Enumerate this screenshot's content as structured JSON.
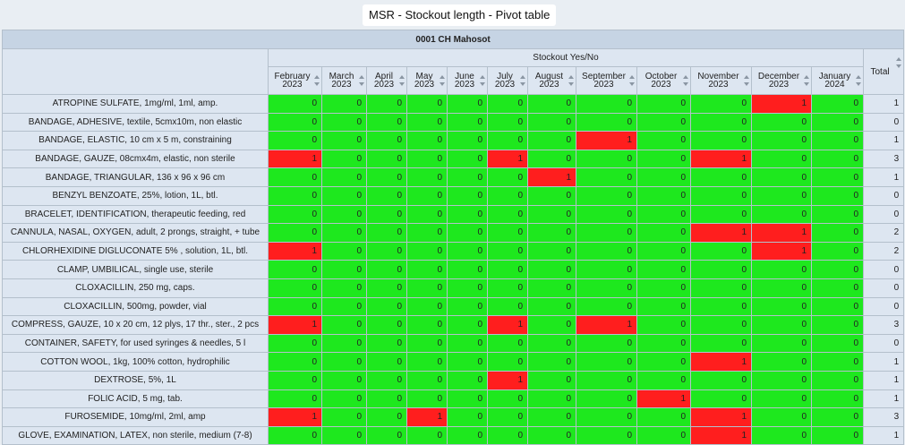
{
  "window": {
    "title": "MSR - Stockout length - Pivot table"
  },
  "org_unit": "0001 CH Mahosot",
  "dimension_label": "Stockout Yes/No",
  "periods": [
    {
      "month": "February",
      "year": "2023"
    },
    {
      "month": "March",
      "year": "2023"
    },
    {
      "month": "April",
      "year": "2023"
    },
    {
      "month": "May",
      "year": "2023"
    },
    {
      "month": "June",
      "year": "2023"
    },
    {
      "month": "July",
      "year": "2023"
    },
    {
      "month": "August",
      "year": "2023"
    },
    {
      "month": "September",
      "year": "2023"
    },
    {
      "month": "October",
      "year": "2023"
    },
    {
      "month": "November",
      "year": "2023"
    },
    {
      "month": "December",
      "year": "2023"
    },
    {
      "month": "January",
      "year": "2024"
    }
  ],
  "total_label": "Total",
  "colors": {
    "stockout": "#ff1e1e",
    "in_stock": "#1ee81e",
    "header": "#dde6f1",
    "org_header": "#c6d4e4"
  },
  "rows": [
    {
      "item": "ATROPINE SULFATE, 1mg/ml, 1ml, amp.",
      "values": [
        "0",
        "0",
        "0",
        "0",
        "0",
        "0",
        "0",
        "0",
        "0",
        "0",
        "1",
        "0"
      ],
      "total": "1"
    },
    {
      "item": "BANDAGE, ADHESIVE, textile, 5cmx10m, non elastic",
      "values": [
        "0",
        "0",
        "0",
        "0",
        "0",
        "0",
        "0",
        "0",
        "0",
        "0",
        "0",
        "0"
      ],
      "total": "0"
    },
    {
      "item": "BANDAGE, ELASTIC, 10 cm x 5 m, constraining",
      "values": [
        "0",
        "0",
        "0",
        "0",
        "0",
        "0",
        "0",
        "1",
        "0",
        "0",
        "0",
        "0"
      ],
      "total": "1"
    },
    {
      "item": "BANDAGE, GAUZE, 08cmx4m, elastic, non sterile",
      "values": [
        "1",
        "0",
        "0",
        "0",
        "0",
        "1",
        "0",
        "0",
        "0",
        "1",
        "0",
        "0"
      ],
      "total": "3"
    },
    {
      "item": "BANDAGE, TRIANGULAR, 136 x 96 x 96 cm",
      "values": [
        "0",
        "0",
        "0",
        "0",
        "0",
        "0",
        "1",
        "0",
        "0",
        "0",
        "0",
        "0"
      ],
      "total": "1"
    },
    {
      "item": "BENZYL BENZOATE, 25%, lotion, 1L, btl.",
      "values": [
        "0",
        "0",
        "0",
        "0",
        "0",
        "0",
        "0",
        "0",
        "0",
        "0",
        "0",
        "0"
      ],
      "total": "0"
    },
    {
      "item": "BRACELET, IDENTIFICATION, therapeutic feeding, red",
      "values": [
        "0",
        "0",
        "0",
        "0",
        "0",
        "0",
        "0",
        "0",
        "0",
        "0",
        "0",
        "0"
      ],
      "total": "0"
    },
    {
      "item": "CANNULA, NASAL, OXYGEN, adult, 2 prongs, straight, + tube",
      "values": [
        "0",
        "0",
        "0",
        "0",
        "0",
        "0",
        "0",
        "0",
        "0",
        "1",
        "1",
        "0"
      ],
      "total": "2"
    },
    {
      "item": "CHLORHEXIDINE DIGLUCONATE 5% , solution, 1L, btl.",
      "values": [
        "1",
        "0",
        "0",
        "0",
        "0",
        "0",
        "0",
        "0",
        "0",
        "0",
        "1",
        "0"
      ],
      "total": "2"
    },
    {
      "item": "CLAMP, UMBILICAL, single use, sterile",
      "values": [
        "0",
        "0",
        "0",
        "0",
        "0",
        "0",
        "0",
        "0",
        "0",
        "0",
        "0",
        "0"
      ],
      "total": "0"
    },
    {
      "item": "CLOXACILLIN, 250 mg, caps.",
      "values": [
        "0",
        "0",
        "0",
        "0",
        "0",
        "0",
        "0",
        "0",
        "0",
        "0",
        "0",
        "0"
      ],
      "total": "0"
    },
    {
      "item": "CLOXACILLIN, 500mg, powder, vial",
      "values": [
        "0",
        "0",
        "0",
        "0",
        "0",
        "0",
        "0",
        "0",
        "0",
        "0",
        "0",
        "0"
      ],
      "total": "0"
    },
    {
      "item": "COMPRESS, GAUZE, 10 x 20 cm, 12 plys, 17 thr., ster., 2 pcs",
      "values": [
        "1",
        "0",
        "0",
        "0",
        "0",
        "1",
        "0",
        "1",
        "0",
        "0",
        "0",
        "0"
      ],
      "total": "3"
    },
    {
      "item": "CONTAINER, SAFETY, for used syringes & needles, 5 l",
      "values": [
        "0",
        "0",
        "0",
        "0",
        "0",
        "0",
        "0",
        "0",
        "0",
        "0",
        "0",
        "0"
      ],
      "total": "0"
    },
    {
      "item": "COTTON WOOL, 1kg, 100% cotton, hydrophilic",
      "values": [
        "0",
        "0",
        "0",
        "0",
        "0",
        "0",
        "0",
        "0",
        "0",
        "1",
        "0",
        "0"
      ],
      "total": "1"
    },
    {
      "item": "DEXTROSE, 5%, 1L",
      "values": [
        "0",
        "0",
        "0",
        "0",
        "0",
        "1",
        "0",
        "0",
        "0",
        "0",
        "0",
        "0"
      ],
      "total": "1"
    },
    {
      "item": "FOLIC ACID, 5 mg, tab.",
      "values": [
        "0",
        "0",
        "0",
        "0",
        "0",
        "0",
        "0",
        "0",
        "1",
        "0",
        "0",
        "0"
      ],
      "total": "1"
    },
    {
      "item": "FUROSEMIDE, 10mg/ml, 2ml, amp",
      "values": [
        "1",
        "0",
        "0",
        "1",
        "0",
        "0",
        "0",
        "0",
        "0",
        "1",
        "0",
        "0"
      ],
      "total": "3"
    },
    {
      "item": "GLOVE, EXAMINATION, LATEX, non sterile, medium (7-8)",
      "values": [
        "0",
        "0",
        "0",
        "0",
        "0",
        "0",
        "0",
        "0",
        "0",
        "1",
        "0",
        "0"
      ],
      "total": "1"
    }
  ]
}
